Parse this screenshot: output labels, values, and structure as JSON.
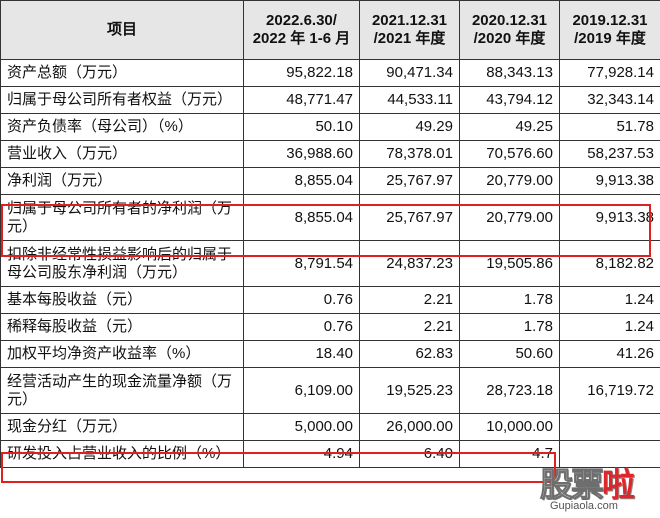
{
  "header": {
    "item": "项目",
    "columns": [
      [
        "2022.6.30/",
        "2022 年 1-6 月"
      ],
      [
        "2021.12.31",
        "/2021 年度"
      ],
      [
        "2020.12.31",
        "/2020 年度"
      ],
      [
        "2019.12.31",
        "/2019 年度"
      ]
    ]
  },
  "rows": [
    {
      "label": "资产总额（万元）",
      "values": [
        "95,822.18",
        "90,471.34",
        "88,343.13",
        "77,928.14"
      ]
    },
    {
      "label": "归属于母公司所有者权益（万元）",
      "values": [
        "48,771.47",
        "44,533.11",
        "43,794.12",
        "32,343.14"
      ]
    },
    {
      "label": "资产负债率（母公司）（%）",
      "values": [
        "50.10",
        "49.29",
        "49.25",
        "51.78"
      ]
    },
    {
      "label": "营业收入（万元）",
      "values": [
        "36,988.60",
        "78,378.01",
        "70,576.60",
        "58,237.53"
      ]
    },
    {
      "label": "净利润（万元）",
      "values": [
        "8,855.04",
        "25,767.97",
        "20,779.00",
        "9,913.38"
      ]
    },
    {
      "label": "归属于母公司所有者的净利润（万元）",
      "values": [
        "8,855.04",
        "25,767.97",
        "20,779.00",
        "9,913.38"
      ]
    },
    {
      "label": "扣除非经常性损益影响后的归属于母公司股东净利润（万元）",
      "values": [
        "8,791.54",
        "24,837.23",
        "19,505.86",
        "8,182.82"
      ]
    },
    {
      "label": "基本每股收益（元）",
      "values": [
        "0.76",
        "2.21",
        "1.78",
        "1.24"
      ]
    },
    {
      "label": "稀释每股收益（元）",
      "values": [
        "0.76",
        "2.21",
        "1.78",
        "1.24"
      ]
    },
    {
      "label": "加权平均净资产收益率（%）",
      "values": [
        "18.40",
        "62.83",
        "50.60",
        "41.26"
      ]
    },
    {
      "label": "经营活动产生的现金流量净额（万元）",
      "values": [
        "6,109.00",
        "19,525.23",
        "28,723.18",
        "16,719.72"
      ]
    },
    {
      "label": "现金分红（万元）",
      "values": [
        "5,000.00",
        "26,000.00",
        "10,000.00",
        ""
      ]
    },
    {
      "label": "研发投入占营业收入的比例（%）",
      "values": [
        "4.94",
        "6.40",
        "4.7",
        ""
      ]
    }
  ],
  "highlight_color": "#e02020",
  "watermark": {
    "logo": "股票",
    "logo_accent": "啦",
    "url": "Gupiaola.com"
  }
}
